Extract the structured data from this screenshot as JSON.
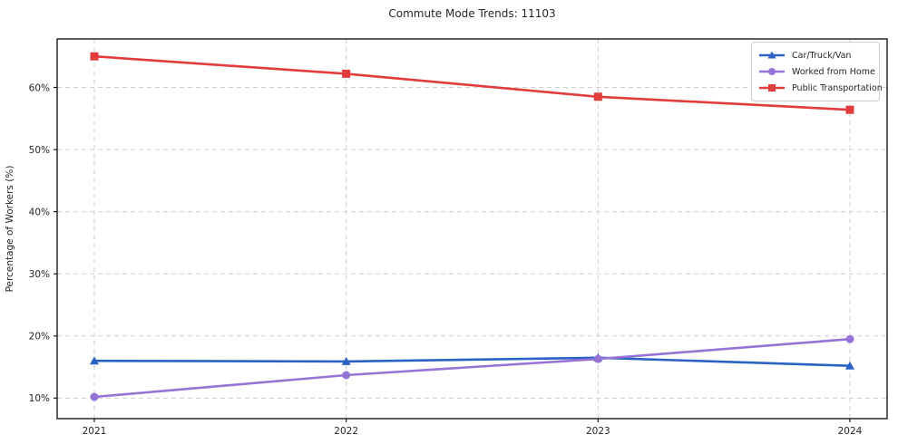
{
  "chart": {
    "title": "Commute Mode Trends: 11103",
    "ylabel": "Percentage of Workers (%)",
    "xlabel": ""
  },
  "chart_data": {
    "type": "line",
    "title": "Commute Mode Trends: 11103",
    "xlabel": "",
    "ylabel": "Percentage of Workers (%)",
    "x": [
      2021,
      2022,
      2023,
      2024
    ],
    "x_tick_labels": [
      "2021",
      "2022",
      "2023",
      "2024"
    ],
    "y_ticks": [
      10,
      20,
      30,
      40,
      50,
      60
    ],
    "y_tick_labels": [
      "10%",
      "20%",
      "30%",
      "40%",
      "50%",
      "60%"
    ],
    "ylim": [
      6.7,
      67.8
    ],
    "grid": true,
    "grid_style": "dashed",
    "legend_position": "upper right",
    "colors": {
      "grid": "#cfcfcf",
      "spine": "#1a1a1a",
      "tick_text": "#262626",
      "background": "#ffffff"
    },
    "series": [
      {
        "name": "Car/Truck/Van",
        "color": "#2a62c6",
        "marker": "triangle",
        "values": [
          16.0,
          15.9,
          16.5,
          15.2
        ]
      },
      {
        "name": "Worked from Home",
        "color": "#9673d6",
        "marker": "circle",
        "values": [
          10.2,
          13.7,
          16.3,
          19.5
        ]
      },
      {
        "name": "Public Transportation",
        "color": "#e23c3c",
        "marker": "square",
        "values": [
          65.0,
          62.2,
          58.5,
          56.4
        ]
      }
    ]
  }
}
